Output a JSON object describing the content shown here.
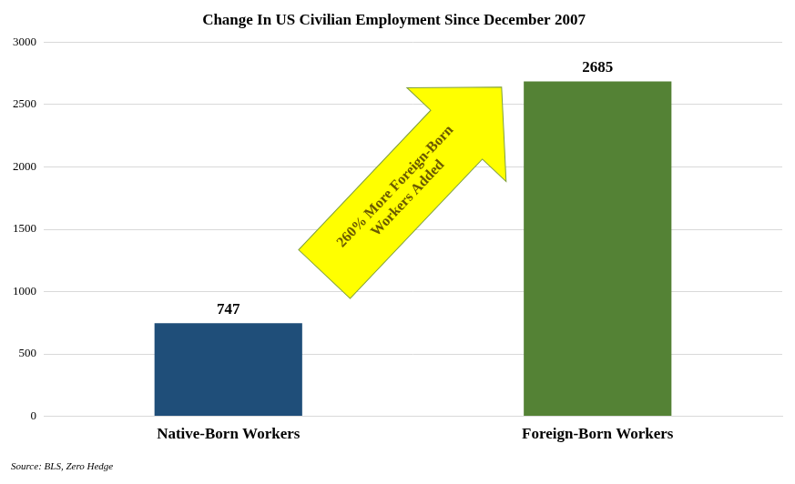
{
  "chart_data": {
    "type": "bar",
    "title": "Change In US Civilian Employment Since December 2007",
    "categories": [
      "Native-Born Workers",
      "Foreign-Born Workers"
    ],
    "values": [
      747,
      2685
    ],
    "colors": [
      "#1f4e79",
      "#548235"
    ],
    "ylim": [
      0,
      3000
    ],
    "yticks": [
      0,
      500,
      1000,
      1500,
      2000,
      2500,
      3000
    ],
    "grid": true,
    "data_labels": true,
    "annotation": [
      "260% More Foreign-Born",
      "Workers Added"
    ],
    "source": "Source: BLS, Zero Hedge"
  }
}
